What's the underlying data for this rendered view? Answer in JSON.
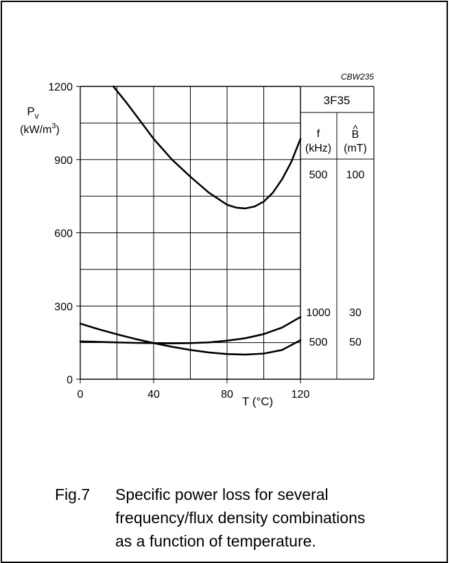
{
  "figure_code": "CBW235",
  "material": "3F35",
  "table": {
    "col1_header": "f",
    "col1_unit": "(kHz)",
    "col2_header": "B",
    "col2_hat": "^",
    "col2_unit": "(mT)",
    "rows": [
      {
        "f": "500",
        "b": "100"
      },
      {
        "f": "1000",
        "b": "30"
      },
      {
        "f": "500",
        "b": "50"
      }
    ]
  },
  "caption": {
    "label": "Fig.7",
    "lines": [
      "Specific power loss for several",
      "frequency/flux density combinations",
      "as a function of temperature."
    ]
  },
  "chart_data": {
    "type": "line",
    "title": "",
    "ylabel_main": "P",
    "ylabel_sub": "v",
    "ylabel_unit_prefix": "(kW/m",
    "ylabel_unit_sup": "3",
    "ylabel_unit_suffix": ")",
    "xlabel": "T  (°C)",
    "xlim": [
      0,
      120
    ],
    "ylim": [
      0,
      1200
    ],
    "x_ticks": [
      0,
      40,
      80,
      120
    ],
    "x_tick_labels": [
      "0",
      "40",
      "80",
      "120"
    ],
    "y_ticks": [
      0,
      300,
      600,
      900,
      1200
    ],
    "y_tick_labels": [
      "0",
      "300",
      "600",
      "900",
      "1200"
    ],
    "grid": true,
    "grid_x_step": 20,
    "grid_y_step": 150,
    "series": [
      {
        "f_khz": 500,
        "b_mt": 100,
        "x": [
          18,
          25,
          30,
          40,
          50,
          60,
          70,
          80,
          85,
          90,
          95,
          100,
          105,
          110,
          115,
          120
        ],
        "y": [
          1200,
          1135,
          1085,
          985,
          900,
          830,
          765,
          715,
          703,
          700,
          708,
          728,
          765,
          820,
          890,
          985
        ]
      },
      {
        "f_khz": 1000,
        "b_mt": 30,
        "x": [
          0,
          10,
          20,
          30,
          40,
          50,
          60,
          70,
          80,
          90,
          100,
          110,
          120
        ],
        "y": [
          228,
          205,
          184,
          165,
          148,
          133,
          120,
          110,
          103,
          101,
          105,
          120,
          160
        ]
      },
      {
        "f_khz": 500,
        "b_mt": 50,
        "x": [
          0,
          10,
          20,
          30,
          40,
          50,
          60,
          70,
          80,
          90,
          100,
          110,
          120
        ],
        "y": [
          155,
          153,
          151,
          149,
          148,
          147,
          148,
          151,
          158,
          168,
          185,
          212,
          255
        ]
      }
    ]
  }
}
